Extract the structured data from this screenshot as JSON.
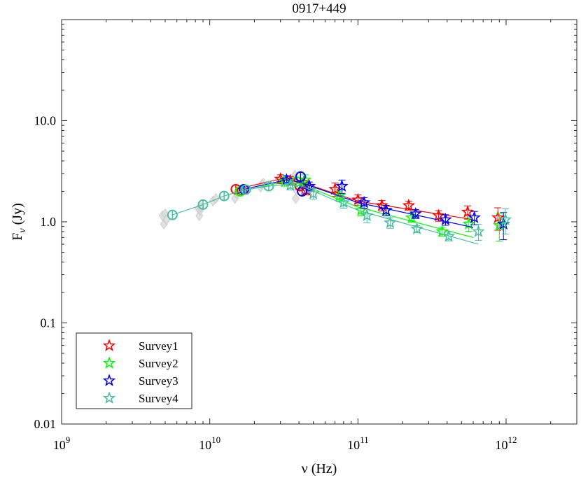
{
  "chart_data": {
    "type": "scatter",
    "title": "0917+449",
    "xlabel": "ν (Hz)",
    "ylabel_main": "F",
    "ylabel_sub": "ν",
    "ylabel_rest": " (Jy)",
    "xscale": "log",
    "yscale": "log",
    "xlim": [
      1000000000,
      3000000000000
    ],
    "ylim": [
      0.01,
      100
    ],
    "x_ticks": [
      {
        "value": 1000000000,
        "base": "10",
        "exp": "9"
      },
      {
        "value": 10000000000,
        "base": "10",
        "exp": "10"
      },
      {
        "value": 100000000000,
        "base": "10",
        "exp": "11"
      },
      {
        "value": 1000000000000,
        "base": "10",
        "exp": "12"
      }
    ],
    "y_ticks": [
      {
        "value": 0.01,
        "label": "0.01"
      },
      {
        "value": 0.1,
        "label": "0.1"
      },
      {
        "value": 1,
        "label": "1.0"
      },
      {
        "value": 10,
        "label": "10.0"
      }
    ],
    "background_points": [
      [
        4800000000.0,
        1.15
      ],
      [
        4900000000.0,
        0.95
      ],
      [
        5000000000.0,
        1.2
      ],
      [
        5100000000.0,
        1.05
      ],
      [
        8400000000.0,
        1.35
      ],
      [
        8500000000.0,
        1.15
      ],
      [
        8600000000.0,
        1.3
      ],
      [
        8700000000.0,
        1.4
      ],
      [
        10500000000.0,
        1.6
      ],
      [
        11000000000.0,
        1.7
      ],
      [
        14800000000.0,
        1.7
      ],
      [
        15200000000.0,
        1.9
      ],
      [
        15400000000.0,
        2.0
      ],
      [
        22000000000.0,
        2.2
      ],
      [
        22500000000.0,
        2.35
      ],
      [
        23000000000.0,
        2.4
      ],
      [
        36500000000.0,
        2.5
      ],
      [
        37000000000.0,
        2.7
      ],
      [
        37500000000.0,
        2.9
      ],
      [
        38000000000.0,
        1.7
      ],
      [
        38000000000.0,
        2.1
      ],
      [
        43000000000.0,
        2.3
      ]
    ],
    "series": [
      {
        "name": "Survey1",
        "color": "#ff0000",
        "circles": [
          [
            15000000000.0,
            2.1
          ],
          [
            16500000000.0,
            2.05
          ],
          [
            40500000000.0,
            2.25
          ]
        ],
        "line": [
          [
            15000000000.0,
            2.1
          ],
          [
            30000000000.0,
            2.65
          ],
          [
            40000000000.0,
            2.5
          ],
          [
            100000000000.0,
            1.6
          ],
          [
            600000000000.0,
            1.05
          ]
        ],
        "stars": [
          [
            30000000000.0,
            2.65,
            0.1
          ],
          [
            35000000000.0,
            2.55,
            0.1
          ],
          [
            43000000000.0,
            2.45,
            0.1
          ],
          [
            45000000000.0,
            2.05,
            0.1
          ],
          [
            70000000000.0,
            2.1,
            0.15
          ],
          [
            100000000000.0,
            1.65,
            0.12
          ],
          [
            145000000000.0,
            1.45,
            0.12
          ],
          [
            220000000000.0,
            1.45,
            0.1
          ],
          [
            350000000000.0,
            1.15,
            0.12
          ],
          [
            550000000000.0,
            1.25,
            0.15
          ],
          [
            880000000000.0,
            1.1,
            0.25
          ]
        ]
      },
      {
        "name": "Survey2",
        "color": "#00ff00",
        "circles": [
          [
            16000000000.0,
            2.0
          ],
          [
            38500000000.0,
            2.5
          ]
        ],
        "line": [
          [
            16000000000.0,
            2.0
          ],
          [
            30000000000.0,
            2.45
          ],
          [
            40000000000.0,
            2.4
          ],
          [
            100000000000.0,
            1.4
          ],
          [
            600000000000.0,
            0.7
          ]
        ],
        "stars": [
          [
            32000000000.0,
            2.5,
            0.1
          ],
          [
            44000000000.0,
            2.6,
            0.12
          ],
          [
            75000000000.0,
            1.8,
            0.12
          ],
          [
            105000000000.0,
            1.3,
            0.12
          ],
          [
            155000000000.0,
            1.3,
            0.12
          ],
          [
            230000000000.0,
            1.1,
            0.1
          ],
          [
            370000000000.0,
            0.8,
            0.1
          ],
          [
            560000000000.0,
            0.95,
            0.15
          ],
          [
            900000000000.0,
            0.92,
            0.3
          ]
        ]
      },
      {
        "name": "Survey3",
        "color": "#0000ff",
        "circles": [
          [
            17000000000.0,
            2.1
          ],
          [
            41000000000.0,
            2.8
          ],
          [
            42000000000.0,
            2.0
          ]
        ],
        "line": [
          [
            17000000000.0,
            2.1
          ],
          [
            33000000000.0,
            2.6
          ],
          [
            41000000000.0,
            2.45
          ],
          [
            100000000000.0,
            1.55
          ],
          [
            600000000000.0,
            0.88
          ]
        ],
        "stars": [
          [
            33000000000.0,
            2.6,
            0.1
          ],
          [
            47000000000.0,
            2.25,
            0.1
          ],
          [
            78000000000.0,
            2.25,
            0.15
          ],
          [
            110000000000.0,
            1.55,
            0.12
          ],
          [
            155000000000.0,
            1.3,
            0.12
          ],
          [
            245000000000.0,
            1.2,
            0.1
          ],
          [
            390000000000.0,
            1.05,
            0.12
          ],
          [
            610000000000.0,
            1.1,
            0.15
          ],
          [
            960000000000.0,
            0.95,
            0.3
          ]
        ]
      },
      {
        "name": "Survey4",
        "color": "#48c0a0",
        "circles": [
          [
            5600000000.0,
            1.17
          ],
          [
            9000000000.0,
            1.48
          ],
          [
            12500000000.0,
            1.8
          ],
          [
            17500000000.0,
            2.08
          ],
          [
            25000000000.0,
            2.25
          ]
        ],
        "line": [
          [
            5600000000.0,
            1.17
          ],
          [
            9000000000.0,
            1.48
          ],
          [
            12500000000.0,
            1.8
          ],
          [
            17500000000.0,
            2.08
          ],
          [
            25000000000.0,
            2.25
          ],
          [
            33000000000.0,
            2.35
          ],
          [
            42000000000.0,
            2.25
          ],
          [
            100000000000.0,
            1.3
          ],
          [
            650000000000.0,
            0.6
          ]
        ],
        "stars": [
          [
            35000000000.0,
            2.3,
            0.1
          ],
          [
            50000000000.0,
            1.9,
            0.12
          ],
          [
            80000000000.0,
            1.55,
            0.12
          ],
          [
            115000000000.0,
            1.15,
            0.15
          ],
          [
            165000000000.0,
            0.98,
            0.12
          ],
          [
            250000000000.0,
            0.85,
            0.08
          ],
          [
            410000000000.0,
            0.72,
            0.1
          ],
          [
            650000000000.0,
            0.8,
            0.18
          ],
          [
            990000000000.0,
            1.05,
            0.28
          ]
        ]
      }
    ],
    "legend_placement": "bottom-left"
  }
}
